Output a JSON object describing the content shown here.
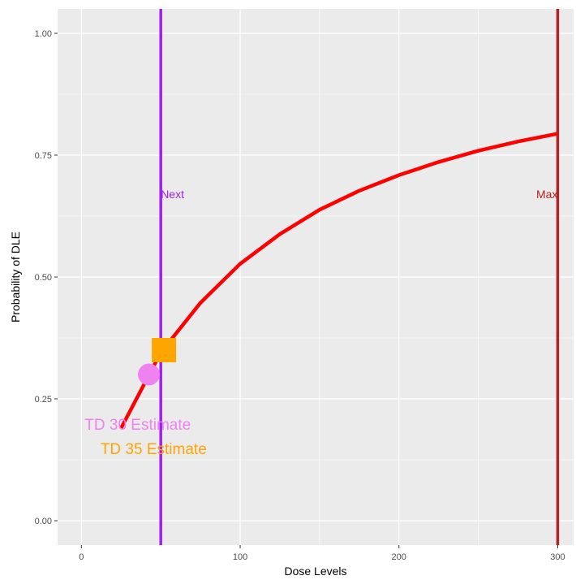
{
  "chart_data": {
    "type": "line",
    "xlabel": "Dose Levels",
    "ylabel": "Probability of DLE",
    "xlim": [
      -15,
      310
    ],
    "ylim": [
      -0.05,
      1.05
    ],
    "x_ticks": [
      0,
      100,
      200,
      300
    ],
    "x_tick_labels": [
      "0",
      "100",
      "200",
      "300"
    ],
    "y_ticks": [
      0.0,
      0.25,
      0.5,
      0.75,
      1.0
    ],
    "y_tick_labels": [
      "0.00",
      "0.25",
      "0.50",
      "0.75",
      "1.00"
    ],
    "grid": true,
    "background": "#ebebeb",
    "series": [
      {
        "color": "#ff0000",
        "x": [
          25,
          50,
          75,
          100,
          125,
          150,
          175,
          200,
          225,
          250,
          275,
          300
        ],
        "y": [
          0.19,
          0.345,
          0.447,
          0.527,
          0.588,
          0.638,
          0.677,
          0.709,
          0.736,
          0.759,
          0.778,
          0.794
        ]
      }
    ],
    "vlines": [
      {
        "x": 50,
        "color": "#a020f0",
        "label": "Next",
        "label_y": 0.67,
        "anchor": "start"
      },
      {
        "x": 300,
        "color": "#b22222",
        "label": "Max",
        "label_y": 0.67,
        "anchor": "end"
      }
    ],
    "points": [
      {
        "x": 42.5,
        "y": 0.3,
        "shape": "circle",
        "color": "#ee82ee"
      },
      {
        "x": 52,
        "y": 0.35,
        "shape": "square",
        "color": "#ffa500"
      }
    ],
    "annotations": [
      {
        "text": "TD 30 Estimate",
        "x": 2,
        "y": 0.198,
        "color": "#ee82ee"
      },
      {
        "text": "TD 35 Estimate",
        "x": 12,
        "y": 0.148,
        "color": "#ffa500"
      }
    ]
  }
}
